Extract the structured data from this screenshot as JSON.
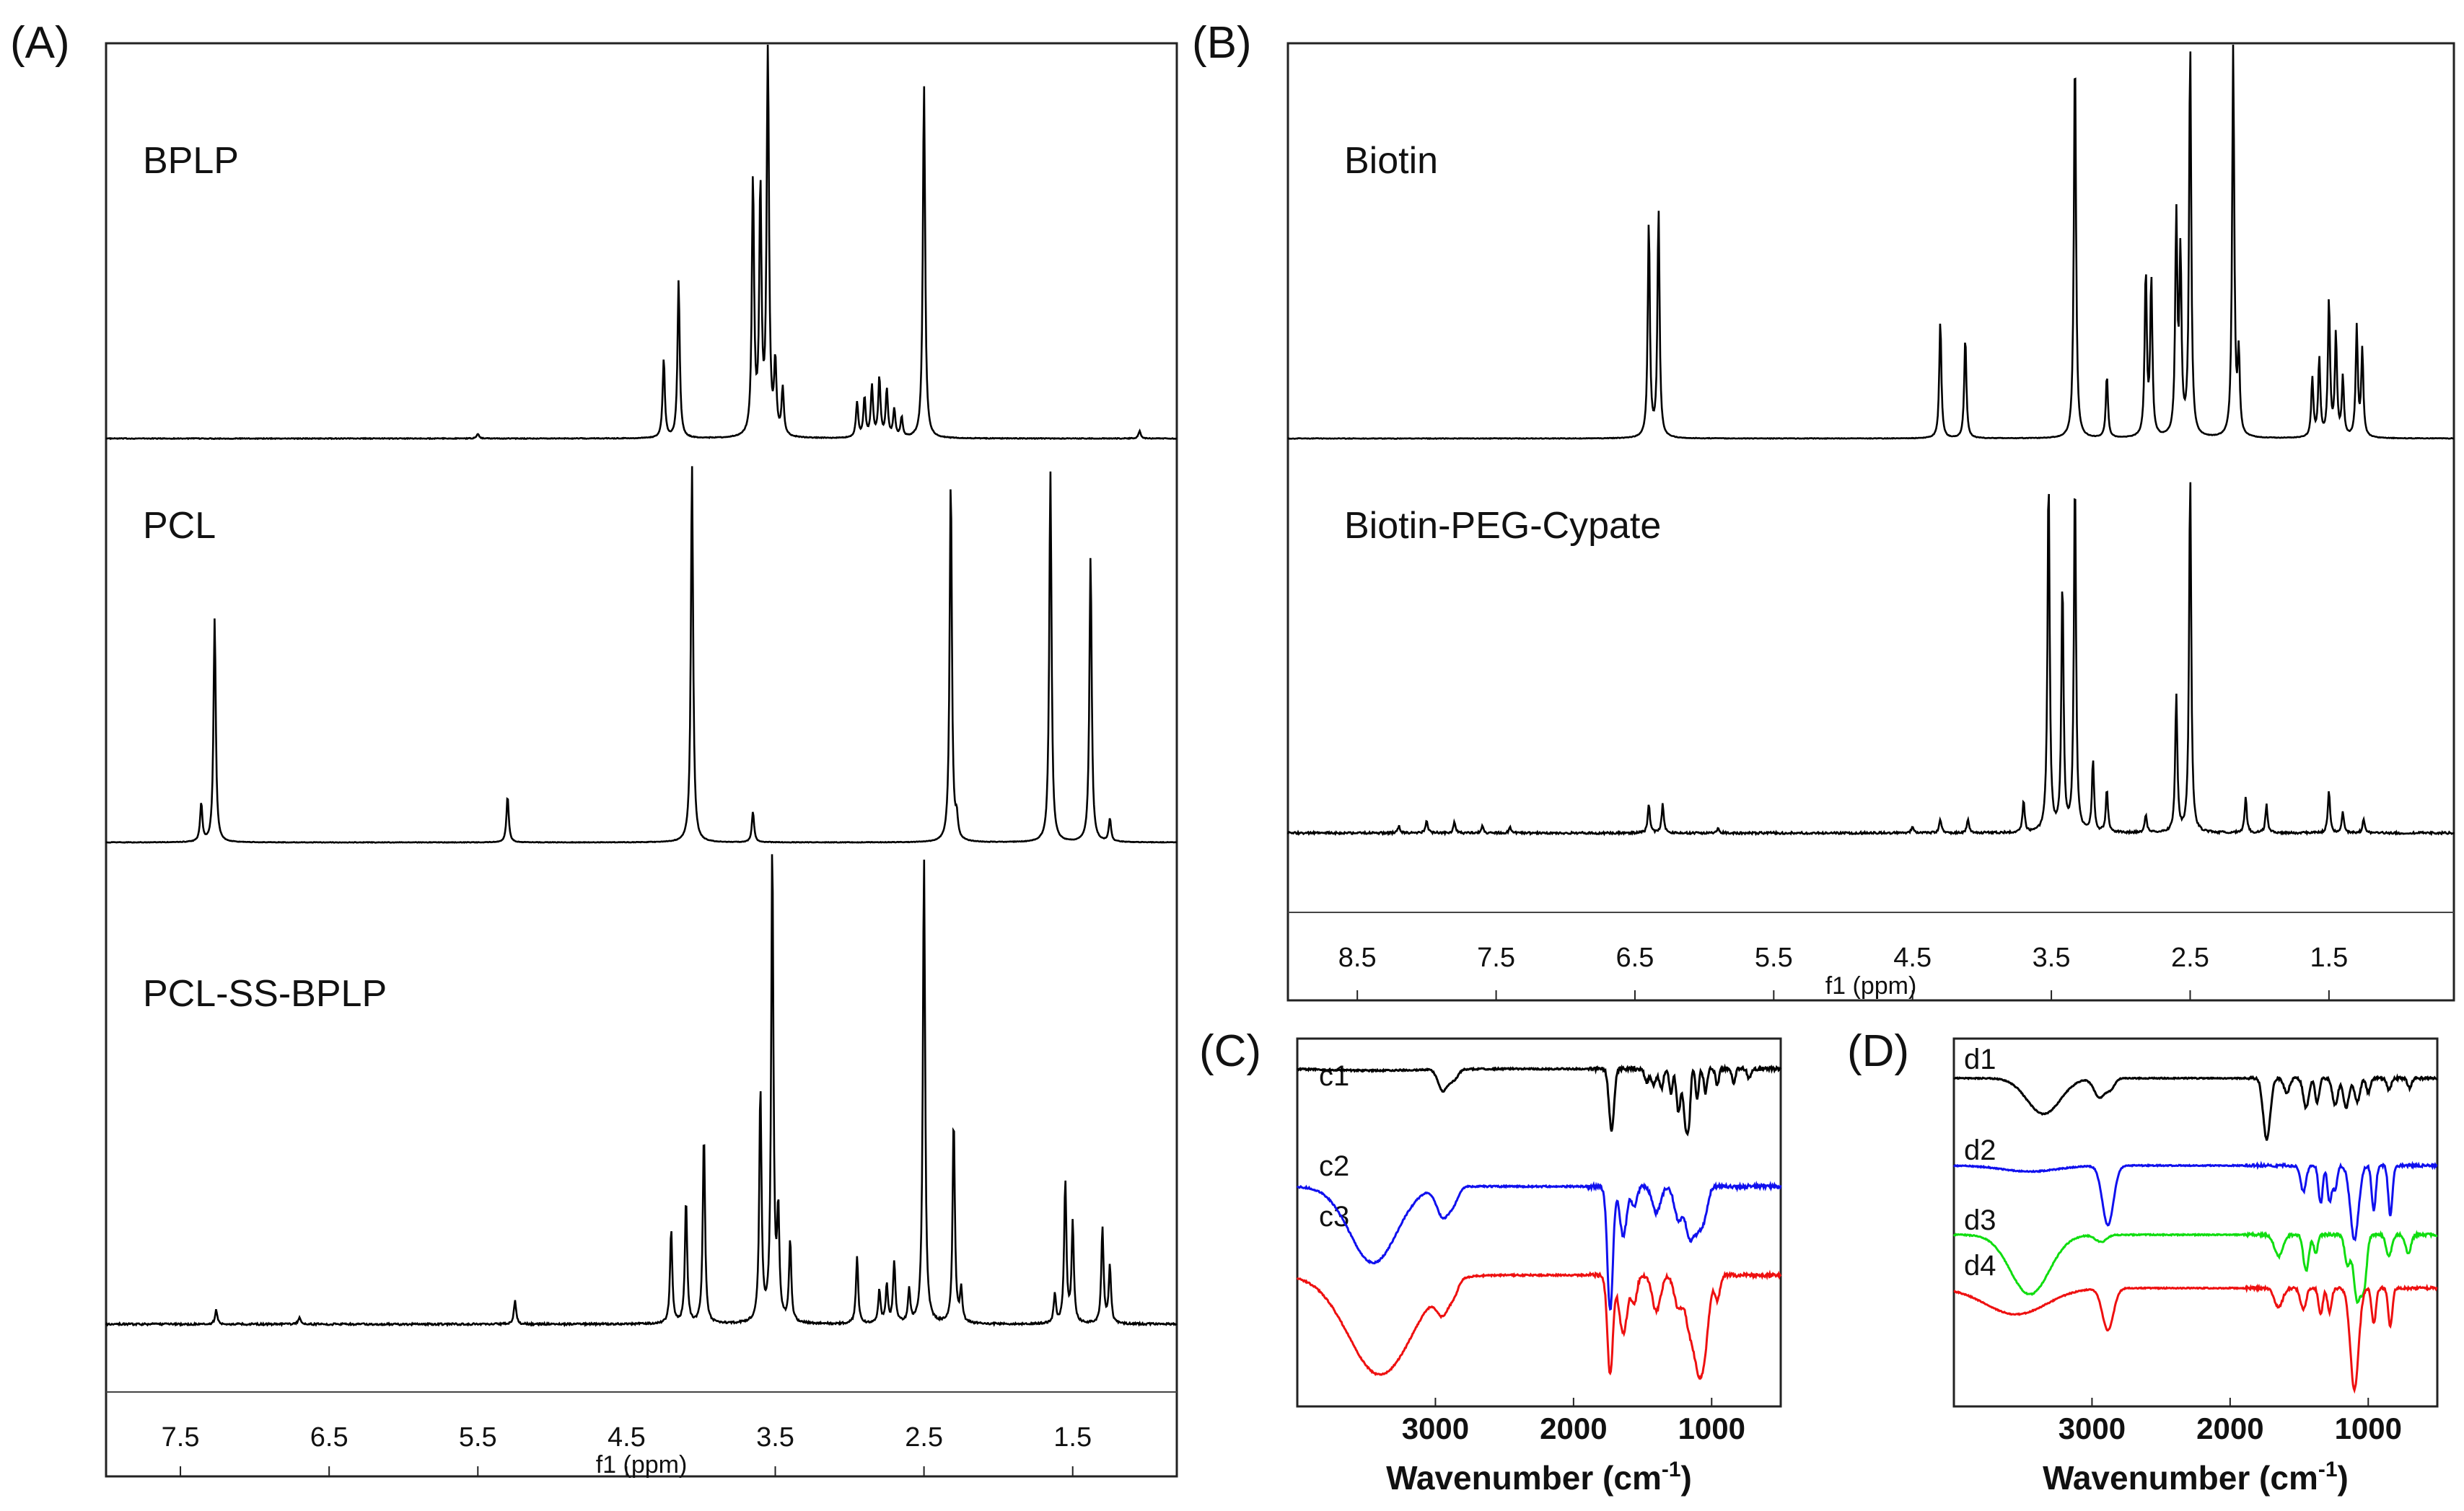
{
  "chart_data": [
    {
      "panel": "(A)",
      "type": "line",
      "subtype": "1H-NMR stacked spectra",
      "xlabel": "f1 (ppm)",
      "xlim": [
        8.0,
        0.8
      ],
      "xticks": [
        "7.5",
        "6.5",
        "5.5",
        "4.5",
        "3.5",
        "2.5",
        "1.5"
      ],
      "tick_values": [
        7.5,
        6.5,
        5.5,
        4.5,
        3.5,
        2.5,
        1.5
      ],
      "series": [
        {
          "name": "BPLP",
          "color": "#000000",
          "baseline_noise": 0.002,
          "peaks": [
            [
              5.5,
              0.012
            ],
            [
              4.25,
              0.2
            ],
            [
              4.15,
              0.4
            ],
            [
              3.65,
              0.65
            ],
            [
              3.6,
              0.62
            ],
            [
              3.55,
              1.0
            ],
            [
              3.5,
              0.18
            ],
            [
              3.45,
              0.12
            ],
            [
              2.95,
              0.09
            ],
            [
              2.9,
              0.1
            ],
            [
              2.85,
              0.13
            ],
            [
              2.8,
              0.15
            ],
            [
              2.75,
              0.12
            ],
            [
              2.7,
              0.07
            ],
            [
              2.65,
              0.05
            ],
            [
              2.5,
              0.9
            ],
            [
              1.05,
              0.02
            ]
          ]
        },
        {
          "name": "PCL",
          "color": "#000000",
          "baseline_noise": 0.0015,
          "peaks": [
            [
              7.27,
              0.58
            ],
            [
              7.36,
              0.1
            ],
            [
              5.3,
              0.12
            ],
            [
              4.06,
              0.98
            ],
            [
              3.65,
              0.08
            ],
            [
              2.32,
              0.94
            ],
            [
              2.28,
              0.05
            ],
            [
              1.65,
              0.96
            ],
            [
              1.38,
              0.74
            ],
            [
              1.25,
              0.06
            ]
          ]
        },
        {
          "name": "PCL-SS-BPLP",
          "color": "#000000",
          "baseline_noise": 0.004,
          "peaks": [
            [
              7.26,
              0.03
            ],
            [
              6.7,
              0.015
            ],
            [
              5.25,
              0.05
            ],
            [
              4.2,
              0.2
            ],
            [
              4.1,
              0.26
            ],
            [
              3.98,
              0.4
            ],
            [
              3.6,
              0.49
            ],
            [
              3.52,
              1.0
            ],
            [
              3.48,
              0.22
            ],
            [
              3.4,
              0.17
            ],
            [
              2.95,
              0.14
            ],
            [
              2.8,
              0.07
            ],
            [
              2.75,
              0.08
            ],
            [
              2.7,
              0.13
            ],
            [
              2.6,
              0.07
            ],
            [
              2.5,
              0.98
            ],
            [
              2.3,
              0.43
            ],
            [
              2.25,
              0.07
            ],
            [
              1.62,
              0.06
            ],
            [
              1.55,
              0.3
            ],
            [
              1.5,
              0.21
            ],
            [
              1.3,
              0.2
            ],
            [
              1.25,
              0.12
            ]
          ]
        }
      ]
    },
    {
      "panel": "(B)",
      "type": "line",
      "subtype": "1H-NMR stacked spectra",
      "xlabel": "f1 (ppm)",
      "xlim": [
        9.0,
        0.6
      ],
      "xticks": [
        "8.5",
        "7.5",
        "6.5",
        "5.5",
        "4.5",
        "3.5",
        "2.5",
        "1.5"
      ],
      "tick_values": [
        8.5,
        7.5,
        6.5,
        5.5,
        4.5,
        3.5,
        2.5,
        1.5
      ],
      "series": [
        {
          "name": "Biotin",
          "color": "#000000",
          "baseline_noise": 0.0015,
          "peaks": [
            [
              6.4,
              0.55
            ],
            [
              6.33,
              0.58
            ],
            [
              4.3,
              0.3
            ],
            [
              4.12,
              0.26
            ],
            [
              3.33,
              1.0
            ],
            [
              3.1,
              0.16
            ],
            [
              2.82,
              0.42
            ],
            [
              2.78,
              0.4
            ],
            [
              2.6,
              0.55
            ],
            [
              2.57,
              0.45
            ],
            [
              2.5,
              1.0
            ],
            [
              2.19,
              1.0
            ],
            [
              2.15,
              0.2
            ],
            [
              1.62,
              0.15
            ],
            [
              1.57,
              0.2
            ],
            [
              1.5,
              0.35
            ],
            [
              1.45,
              0.26
            ],
            [
              1.4,
              0.15
            ],
            [
              1.3,
              0.28
            ],
            [
              1.26,
              0.22
            ]
          ]
        },
        {
          "name": "Biotin-PEG-Cypate",
          "color": "#000000",
          "baseline_noise": 0.006,
          "peaks": [
            [
              8.2,
              0.02
            ],
            [
              8.0,
              0.035
            ],
            [
              7.8,
              0.03
            ],
            [
              7.6,
              0.02
            ],
            [
              7.4,
              0.015
            ],
            [
              6.4,
              0.08
            ],
            [
              6.3,
              0.08
            ],
            [
              5.9,
              0.015
            ],
            [
              4.5,
              0.02
            ],
            [
              4.3,
              0.04
            ],
            [
              4.1,
              0.04
            ],
            [
              3.7,
              0.09
            ],
            [
              3.52,
              1.0
            ],
            [
              3.42,
              0.7
            ],
            [
              3.33,
              1.0
            ],
            [
              3.2,
              0.2
            ],
            [
              3.1,
              0.12
            ],
            [
              2.82,
              0.05
            ],
            [
              2.6,
              0.38
            ],
            [
              2.5,
              1.0
            ],
            [
              2.1,
              0.1
            ],
            [
              1.95,
              0.08
            ],
            [
              1.5,
              0.12
            ],
            [
              1.4,
              0.06
            ],
            [
              1.25,
              0.04
            ]
          ]
        }
      ]
    },
    {
      "panel": "(C)",
      "type": "line",
      "subtype": "FTIR spectra (offset)",
      "xlabel": "Wavenumber (cm",
      "xlabel_sup": "-1",
      "xlabel_close": ")",
      "xlim": [
        4000,
        500
      ],
      "xticks": [
        "3000",
        "2000",
        "1000"
      ],
      "tick_values": [
        3000,
        2000,
        1000
      ],
      "series": [
        {
          "name": "c1",
          "color": "#000000",
          "bands": [
            [
              3440,
              0.01,
              300
            ],
            [
              2945,
              0.13,
              35
            ],
            [
              2865,
              0.06,
              30
            ],
            [
              1725,
              0.37,
              18
            ],
            [
              1470,
              0.08,
              15
            ],
            [
              1420,
              0.1,
              15
            ],
            [
              1365,
              0.12,
              15
            ],
            [
              1295,
              0.15,
              12
            ],
            [
              1240,
              0.26,
              15
            ],
            [
              1190,
              0.32,
              15
            ],
            [
              1165,
              0.28,
              12
            ],
            [
              1105,
              0.18,
              12
            ],
            [
              1045,
              0.15,
              12
            ],
            [
              960,
              0.1,
              12
            ],
            [
              840,
              0.08,
              12
            ],
            [
              730,
              0.06,
              12
            ]
          ]
        },
        {
          "name": "c2",
          "color": "#1010ee",
          "bands": [
            [
              3450,
              0.46,
              170
            ],
            [
              2945,
              0.18,
              45
            ],
            [
              2865,
              0.08,
              35
            ],
            [
              1735,
              0.75,
              20
            ],
            [
              1640,
              0.3,
              25
            ],
            [
              1560,
              0.12,
              20
            ],
            [
              1400,
              0.16,
              30
            ],
            [
              1240,
              0.2,
              30
            ],
            [
              1160,
              0.28,
              30
            ],
            [
              1100,
              0.22,
              30
            ],
            [
              1050,
              0.15,
              25
            ]
          ]
        },
        {
          "name": "c3",
          "color": "#ee1010",
          "bands": [
            [
              3400,
              0.6,
              230
            ],
            [
              2945,
              0.16,
              45
            ],
            [
              2865,
              0.07,
              30
            ],
            [
              1735,
              0.6,
              20
            ],
            [
              1640,
              0.35,
              30
            ],
            [
              1560,
              0.16,
              20
            ],
            [
              1400,
              0.22,
              30
            ],
            [
              1240,
              0.2,
              30
            ],
            [
              1160,
              0.3,
              30
            ],
            [
              1100,
              0.45,
              30
            ],
            [
              1050,
              0.4,
              30
            ],
            [
              960,
              0.15,
              20
            ]
          ]
        }
      ]
    },
    {
      "panel": "(D)",
      "type": "line",
      "subtype": "FTIR spectra (offset)",
      "xlabel": "Wavenumber (cm",
      "xlabel_sup": "-1",
      "xlabel_close": ")",
      "xlim": [
        4000,
        500
      ],
      "xticks": [
        "3000",
        "2000",
        "1000"
      ],
      "tick_values": [
        3000,
        2000,
        1000
      ],
      "series": [
        {
          "name": "d1",
          "color": "#000000",
          "bands": [
            [
              3350,
              0.3,
              120
            ],
            [
              2945,
              0.16,
              40
            ],
            [
              2865,
              0.08,
              30
            ],
            [
              1735,
              0.52,
              25
            ],
            [
              1590,
              0.12,
              20
            ],
            [
              1450,
              0.25,
              20
            ],
            [
              1370,
              0.2,
              15
            ],
            [
              1240,
              0.22,
              20
            ],
            [
              1160,
              0.25,
              20
            ],
            [
              1080,
              0.2,
              20
            ],
            [
              1000,
              0.12,
              15
            ],
            [
              850,
              0.1,
              15
            ],
            [
              700,
              0.08,
              15
            ]
          ]
        },
        {
          "name": "d2",
          "color": "#1010ee",
          "bands": [
            [
              3450,
              0.05,
              200
            ],
            [
              2885,
              0.5,
              40
            ],
            [
              1470,
              0.22,
              20
            ],
            [
              1345,
              0.32,
              15
            ],
            [
              1280,
              0.3,
              15
            ],
            [
              1240,
              0.2,
              15
            ],
            [
              1100,
              0.62,
              30
            ],
            [
              960,
              0.38,
              15
            ],
            [
              840,
              0.42,
              15
            ]
          ]
        },
        {
          "name": "d3",
          "color": "#10dd10",
          "bands": [
            [
              3450,
              0.5,
              140
            ],
            [
              2935,
              0.06,
              40
            ],
            [
              1650,
              0.18,
              30
            ],
            [
              1450,
              0.3,
              20
            ],
            [
              1380,
              0.15,
              15
            ],
            [
              1150,
              0.25,
              20
            ],
            [
              1080,
              0.55,
              25
            ],
            [
              1030,
              0.4,
              20
            ],
            [
              850,
              0.18,
              20
            ],
            [
              710,
              0.15,
              20
            ]
          ]
        },
        {
          "name": "d4",
          "color": "#ee1010",
          "bands": [
            [
              3550,
              0.22,
              220
            ],
            [
              2885,
              0.35,
              40
            ],
            [
              1650,
              0.16,
              30
            ],
            [
              1470,
              0.18,
              20
            ],
            [
              1345,
              0.22,
              15
            ],
            [
              1280,
              0.2,
              15
            ],
            [
              1100,
              0.85,
              30
            ],
            [
              960,
              0.3,
              15
            ],
            [
              840,
              0.32,
              15
            ]
          ]
        }
      ]
    }
  ]
}
